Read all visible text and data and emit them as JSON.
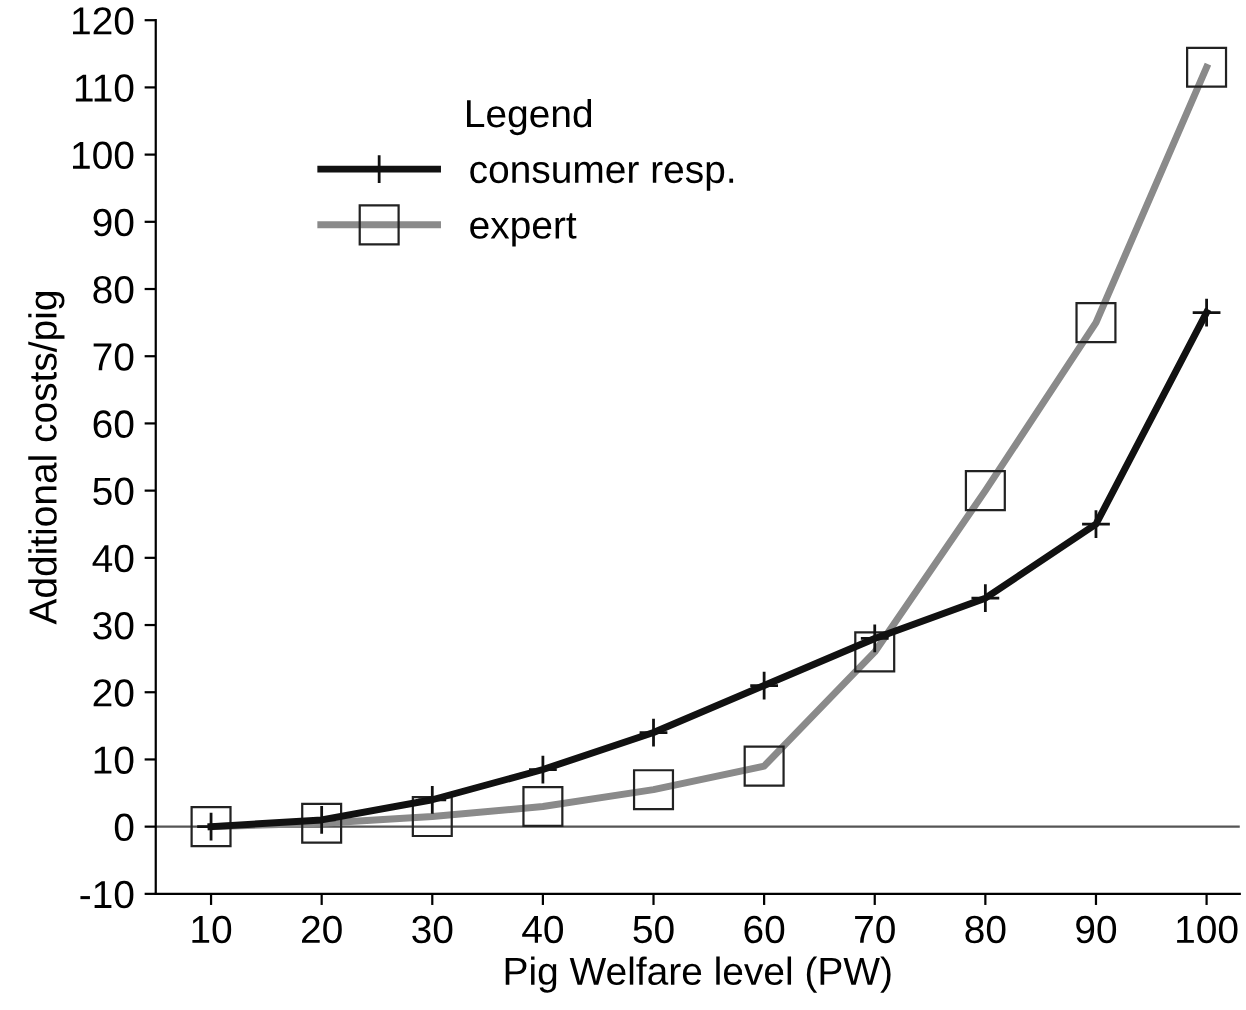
{
  "chart_data": {
    "type": "line",
    "xlabel": "Pig Welfare level (PW)",
    "ylabel": "Additional costs/pig",
    "legend_title": "Legend",
    "x": [
      10,
      20,
      30,
      40,
      50,
      60,
      70,
      80,
      90,
      100
    ],
    "series": [
      {
        "name": "consumer resp.",
        "color": "#111111",
        "marker": "cross",
        "values": [
          0,
          1,
          4,
          8.5,
          14,
          21,
          28,
          34,
          45,
          76.5
        ]
      },
      {
        "name": "expert",
        "color": "#8a8a8a",
        "marker": "square",
        "values": [
          0,
          0.5,
          1.5,
          3,
          5.5,
          9,
          26,
          50,
          75,
          113
        ]
      }
    ],
    "xlim": [
      5,
      103
    ],
    "ylim": [
      -10,
      120
    ],
    "xticks": [
      10,
      20,
      30,
      40,
      50,
      60,
      70,
      80,
      90,
      100
    ],
    "yticks": [
      -10,
      0,
      10,
      20,
      30,
      40,
      50,
      60,
      70,
      80,
      90,
      100,
      110,
      120
    ],
    "ref_lines": [
      {
        "axis": "y",
        "value": 0,
        "color": "#555555"
      }
    ],
    "legend": "top left",
    "grid": false,
    "line_style": "solid"
  }
}
